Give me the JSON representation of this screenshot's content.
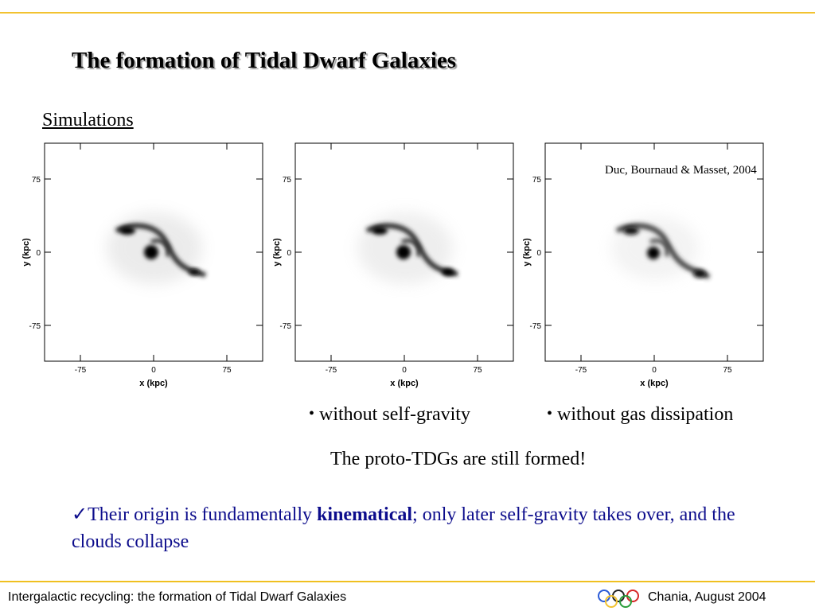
{
  "slide": {
    "title": "The formation of Tidal Dwarf Galaxies",
    "subtitle": "Simulations",
    "credit": "Duc, Bournaud & Masset, 2004",
    "bullets": [
      {
        "symbol": "•",
        "text": "without self-gravity"
      },
      {
        "symbol": "•",
        "text": "without gas dissipation"
      }
    ],
    "result_note": "The proto-TDGs are still formed!",
    "conclusion": {
      "check": "✓",
      "before": "Their origin is fundamentally ",
      "emphasis": "kinematical",
      "after": "; only later self-gravity takes over, and the clouds collapse"
    },
    "footer": {
      "left": "Intergalactic recycling: the formation of Tidal Dwarf Galaxies",
      "right": "Chania, August 2004",
      "logo": "olympic-rings-icon"
    },
    "accent_color": "#f2c230",
    "conclusion_color": "#0d0d8c"
  },
  "panels": [
    {
      "xlabel": "x (kpc)",
      "ylabel": "y (kpc)",
      "x_ticks": [
        "-75",
        "0",
        "75"
      ],
      "y_ticks": [
        "75",
        "0",
        "-75"
      ]
    },
    {
      "xlabel": "x (kpc)",
      "ylabel": "y (kpc)",
      "x_ticks": [
        "-75",
        "0",
        "75"
      ],
      "y_ticks": [
        "75",
        "0",
        "-75"
      ]
    },
    {
      "xlabel": "x (kpc)",
      "ylabel": "y (kpc)",
      "x_ticks": [
        "-75",
        "0",
        "75"
      ],
      "y_ticks": [
        "75",
        "0",
        "-75"
      ]
    }
  ]
}
